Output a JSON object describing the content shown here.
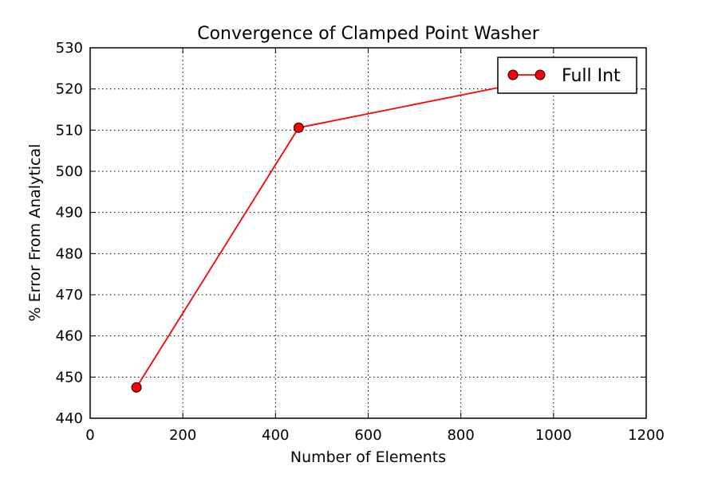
{
  "chart_data": {
    "type": "line",
    "title": "Convergence of Clamped Point Washer",
    "xlabel": "Number of Elements",
    "ylabel": "% Error From Analytical",
    "xlim": [
      0,
      1200
    ],
    "ylim": [
      440,
      530
    ],
    "xticks": [
      0,
      200,
      400,
      600,
      800,
      1000,
      1200
    ],
    "yticks": [
      440,
      450,
      460,
      470,
      480,
      490,
      500,
      510,
      520,
      530
    ],
    "grid": true,
    "legend_position": "top-right",
    "series": [
      {
        "name": "Full Int",
        "color": "#ff0000",
        "marker": "circle",
        "points": [
          {
            "x": 100,
            "y": 447.5
          },
          {
            "x": 450,
            "y": 510.6
          },
          {
            "x": 1000,
            "y": 523.0
          }
        ]
      }
    ]
  }
}
